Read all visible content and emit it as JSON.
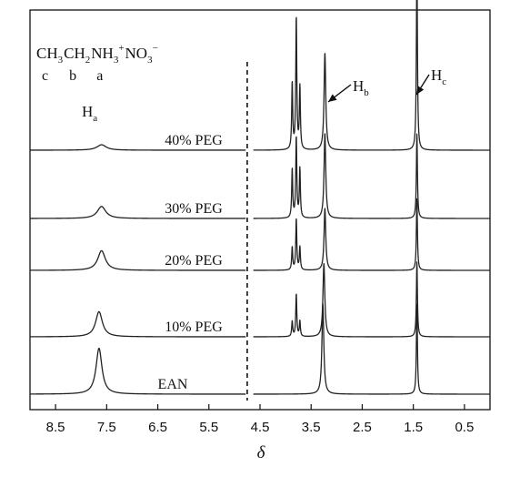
{
  "chart_data": {
    "type": "line",
    "title": "",
    "xlabel": "δ",
    "ylabel": "",
    "xlim": [
      9.0,
      0.0
    ],
    "x_reversed": true,
    "x_ticks": [
      "8.5",
      "7.5",
      "6.5",
      "5.5",
      "4.5",
      "3.5",
      "2.5",
      "1.5",
      "0.5"
    ],
    "x_tick_values": [
      8.5,
      7.5,
      6.5,
      5.5,
      4.5,
      3.5,
      2.5,
      1.5,
      0.5
    ],
    "grid": false,
    "axis_break_at": 4.75,
    "formula": {
      "groups": [
        {
          "text": "CH",
          "sub": "3",
          "sup": "",
          "label": "c"
        },
        {
          "text": "CH",
          "sub": "2",
          "sup": "",
          "label": "b"
        },
        {
          "text": "NH",
          "sub": "3",
          "sup": "+",
          "label": "a"
        },
        {
          "text": " NO",
          "sub": "3",
          "sup": "−",
          "label": ""
        }
      ]
    },
    "annotations": [
      {
        "main": "H",
        "sub": "a"
      },
      {
        "main": "H",
        "sub": "b"
      },
      {
        "main": "H",
        "sub": "c"
      }
    ],
    "series": [
      {
        "name": "EAN",
        "baseline": 0,
        "peaks": [
          {
            "x": 7.65,
            "h": 0.42,
            "w": 0.07
          },
          {
            "x": 3.27,
            "h": 0.83,
            "w": 0.022
          },
          {
            "x": 1.43,
            "h": 0.83,
            "w": 0.012
          }
        ]
      },
      {
        "name": "10% PEG",
        "baseline": 1,
        "peaks": [
          {
            "x": 7.65,
            "h": 0.23,
            "w": 0.08
          },
          {
            "x": 3.87,
            "h": 0.14,
            "w": 0.012
          },
          {
            "x": 3.79,
            "h": 0.39,
            "w": 0.012
          },
          {
            "x": 3.72,
            "h": 0.14,
            "w": 0.012
          },
          {
            "x": 3.25,
            "h": 0.67,
            "w": 0.022
          },
          {
            "x": 1.43,
            "h": 0.69,
            "w": 0.012
          }
        ]
      },
      {
        "name": "20% PEG",
        "baseline": 2,
        "peaks": [
          {
            "x": 7.6,
            "h": 0.18,
            "w": 0.09
          },
          {
            "x": 3.87,
            "h": 0.21,
            "w": 0.012
          },
          {
            "x": 3.79,
            "h": 0.47,
            "w": 0.012
          },
          {
            "x": 3.72,
            "h": 0.21,
            "w": 0.012
          },
          {
            "x": 3.23,
            "h": 0.57,
            "w": 0.02
          },
          {
            "x": 1.43,
            "h": 0.66,
            "w": 0.012
          }
        ]
      },
      {
        "name": "30% PEG",
        "baseline": 3,
        "peaks": [
          {
            "x": 7.6,
            "h": 0.11,
            "w": 0.1
          },
          {
            "x": 3.87,
            "h": 0.45,
            "w": 0.012
          },
          {
            "x": 3.79,
            "h": 0.74,
            "w": 0.012
          },
          {
            "x": 3.72,
            "h": 0.45,
            "w": 0.012
          },
          {
            "x": 3.23,
            "h": 0.78,
            "w": 0.02
          },
          {
            "x": 1.43,
            "h": 0.78,
            "w": 0.012
          }
        ]
      },
      {
        "name": "40% PEG",
        "baseline": 4,
        "peaks": [
          {
            "x": 7.6,
            "h": 0.05,
            "w": 0.11
          },
          {
            "x": 3.87,
            "h": 0.61,
            "w": 0.012
          },
          {
            "x": 3.79,
            "h": 1.21,
            "w": 0.012
          },
          {
            "x": 3.72,
            "h": 0.57,
            "w": 0.012
          },
          {
            "x": 3.23,
            "h": 0.89,
            "w": 0.02
          },
          {
            "x": 1.43,
            "h": 1.75,
            "w": 0.012
          }
        ]
      }
    ]
  }
}
